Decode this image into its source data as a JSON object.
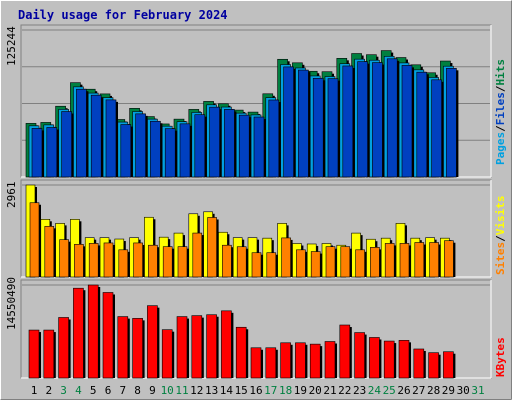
{
  "title": "Daily usage for February 2024",
  "colors": {
    "background": "#c0c0c0",
    "plot": "#c0c0c0",
    "title": "#0000a0",
    "hits": "#008040",
    "files": "#00a0e0",
    "pages": "#0040c0",
    "visits": "#ffff00",
    "sites": "#ff8000",
    "kbytes": "#ff0000",
    "weekday_label": "#000000",
    "weekend_label": "#008040"
  },
  "chart_data": [
    {
      "type": "bar",
      "panel": "hits-files-pages",
      "y_max_label": "125244",
      "ylim": [
        0,
        125244
      ],
      "grid": true,
      "right_label": {
        "parts": [
          "Pages",
          "/",
          "Files",
          "/",
          "Hits"
        ]
      },
      "categories": [
        "1",
        "2",
        "3",
        "4",
        "5",
        "6",
        "7",
        "8",
        "9",
        "10",
        "11",
        "12",
        "13",
        "14",
        "15",
        "16",
        "17",
        "18",
        "19",
        "20",
        "21",
        "22",
        "23",
        "24",
        "25",
        "26",
        "27",
        "28",
        "29"
      ],
      "series": [
        {
          "name": "Hits",
          "values": [
            45700,
            46500,
            60300,
            80400,
            74800,
            70800,
            49000,
            58500,
            51500,
            45200,
            49300,
            57600,
            64400,
            62400,
            57000,
            55300,
            70900,
            100300,
            97300,
            90100,
            89700,
            101100,
            105200,
            104200,
            107700,
            101800,
            95600,
            88800,
            98800
          ]
        },
        {
          "name": "Files",
          "values": [
            43600,
            44400,
            57600,
            76800,
            71500,
            67600,
            46800,
            55800,
            49300,
            43300,
            47100,
            55000,
            61500,
            59600,
            54400,
            52900,
            67600,
            95800,
            92900,
            86100,
            85600,
            96500,
            100400,
            99500,
            102800,
            97200,
            91300,
            84800,
            94400
          ]
        },
        {
          "name": "Pages",
          "values": [
            41400,
            42200,
            55800,
            74800,
            69700,
            65700,
            44700,
            53800,
            47500,
            41200,
            45300,
            53100,
            59500,
            57600,
            52700,
            51100,
            65600,
            93800,
            91100,
            84100,
            83800,
            94600,
            98300,
            97500,
            100700,
            95100,
            89300,
            82800,
            92600
          ]
        }
      ],
      "x": [
        "1",
        "2",
        "3",
        "4",
        "5",
        "6",
        "7",
        "8",
        "9",
        "10",
        "11",
        "12",
        "13",
        "14",
        "15",
        "16",
        "17",
        "18",
        "19",
        "20",
        "21",
        "22",
        "23",
        "24",
        "25",
        "26",
        "27",
        "28",
        "29"
      ]
    },
    {
      "type": "bar",
      "panel": "visits-sites",
      "y_max_label": "2961",
      "ylim": [
        0,
        2961
      ],
      "grid": true,
      "right_label": {
        "parts": [
          "Sites",
          "/",
          "Visits"
        ]
      },
      "categories": [
        "1",
        "2",
        "3",
        "4",
        "5",
        "6",
        "7",
        "8",
        "9",
        "10",
        "11",
        "12",
        "13",
        "14",
        "15",
        "16",
        "17",
        "18",
        "19",
        "20",
        "21",
        "22",
        "23",
        "24",
        "25",
        "26",
        "27",
        "28",
        "29"
      ],
      "series": [
        {
          "name": "Visits",
          "values": [
            2961,
            1857,
            1726,
            1857,
            1266,
            1266,
            1222,
            1266,
            1923,
            1282,
            1413,
            2035,
            2099,
            1441,
            1266,
            1266,
            1250,
            1726,
            1078,
            1063,
            1078,
            1023,
            1413,
            1216,
            1250,
            1726,
            1250,
            1266,
            1250
          ]
        },
        {
          "name": "Sites",
          "values": [
            2390,
            1630,
            1201,
            1051,
            1080,
            1096,
            875,
            1096,
            1023,
            976,
            976,
            1414,
            1916,
            1023,
            974,
            781,
            781,
            1258,
            875,
            818,
            976,
            976,
            875,
            954,
            1080,
            1080,
            1110,
            1110,
            1168
          ]
        }
      ]
    },
    {
      "type": "bar",
      "panel": "kbytes",
      "y_max_label": "14550490",
      "ylim": [
        0,
        14550490
      ],
      "grid": true,
      "right_label": {
        "parts": [
          "KBytes"
        ]
      },
      "categories": [
        "1",
        "2",
        "3",
        "4",
        "5",
        "6",
        "7",
        "8",
        "9",
        "10",
        "11",
        "12",
        "13",
        "14",
        "15",
        "16",
        "17",
        "18",
        "19",
        "20",
        "21",
        "22",
        "23",
        "24",
        "25",
        "26",
        "27",
        "28",
        "29"
      ],
      "series": [
        {
          "name": "KBytes",
          "values": [
            7500000,
            7500000,
            9470000,
            14050000,
            14550490,
            13380000,
            9610000,
            9330000,
            11320000,
            7560000,
            9610000,
            9760000,
            9900000,
            10510000,
            7940000,
            4730000,
            4730000,
            5510000,
            5510000,
            5300000,
            5710000,
            8290000,
            7110000,
            6340000,
            5780000,
            5890000,
            4540000,
            3960000,
            4110000
          ]
        }
      ]
    }
  ],
  "x_axis": {
    "labels": [
      "1",
      "2",
      "3",
      "4",
      "5",
      "6",
      "7",
      "8",
      "9",
      "10",
      "11",
      "12",
      "13",
      "14",
      "15",
      "16",
      "17",
      "18",
      "19",
      "20",
      "21",
      "22",
      "23",
      "24",
      "25",
      "26",
      "27",
      "28",
      "29",
      "30",
      "31"
    ],
    "weekend": [
      false,
      false,
      true,
      true,
      false,
      false,
      false,
      false,
      false,
      true,
      true,
      false,
      false,
      false,
      false,
      false,
      true,
      true,
      false,
      false,
      false,
      false,
      false,
      true,
      true,
      false,
      false,
      false,
      false,
      false,
      true
    ]
  }
}
